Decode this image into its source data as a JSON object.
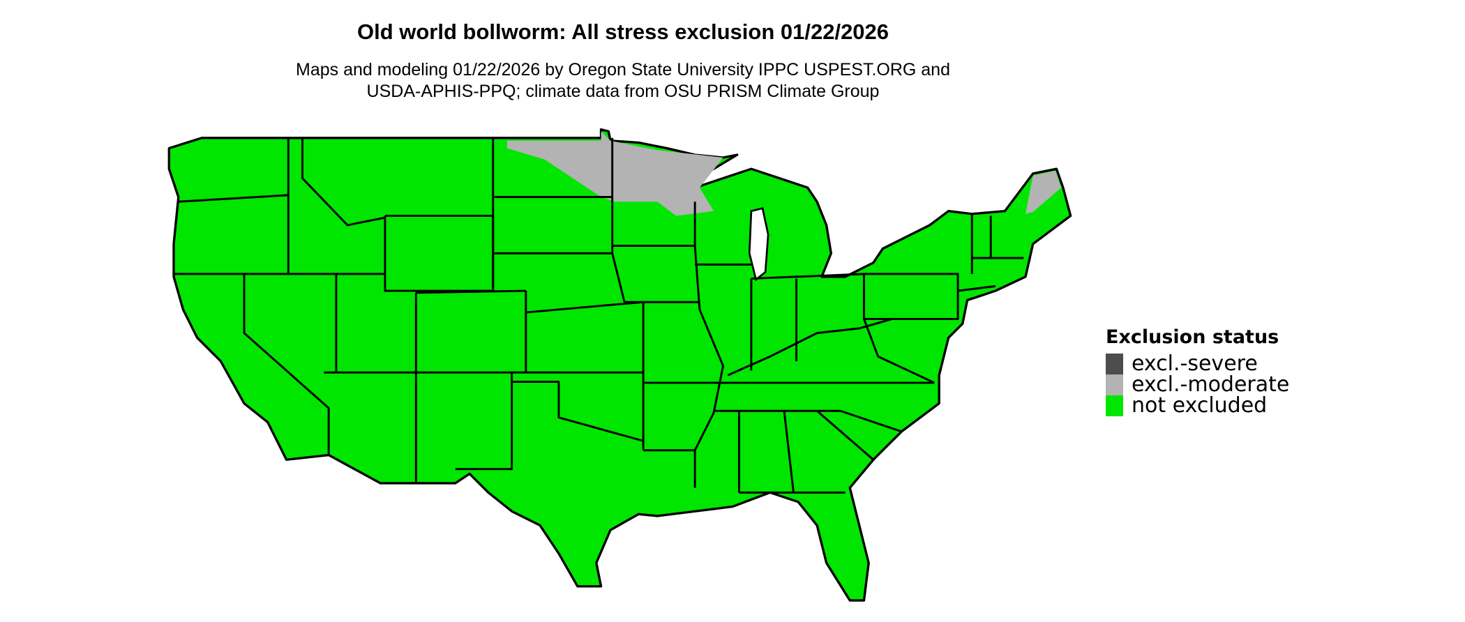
{
  "title": "Old world bollworm: All stress exclusion 01/22/2026",
  "subtitle_lines": [
    "Maps and modeling 01/22/2026 by Oregon State University IPPC USPEST.ORG and",
    "USDA-APHIS-PPQ; climate data from OSU PRISM Climate Group"
  ],
  "legend": {
    "title": "Exclusion status",
    "items": [
      {
        "label": "excl.-severe",
        "color": "#4d4d4d"
      },
      {
        "label": "excl.-moderate",
        "color": "#b3b3b3"
      },
      {
        "label": "not excluded",
        "color": "#00e600"
      }
    ]
  },
  "map": {
    "region": "Contiguous United States",
    "land_color": "#00e600",
    "border_color": "#000000"
  }
}
